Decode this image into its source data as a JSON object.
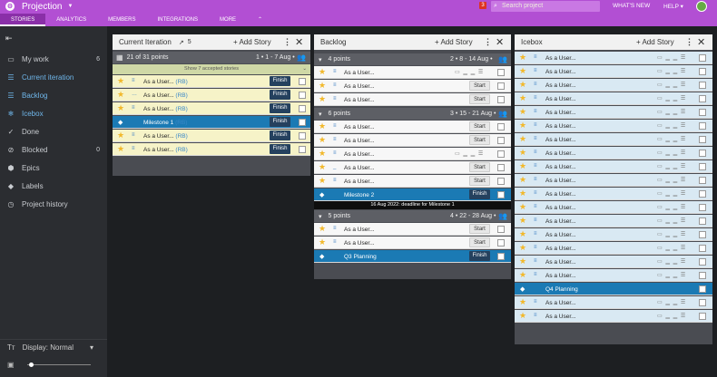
{
  "topbar": {
    "project_name": "Projection",
    "notification_count": "3",
    "search_placeholder": "Search project",
    "whats_new": "WHAT'S NEW",
    "help": "HELP",
    "tabs": [
      "STORIES",
      "ANALYTICS",
      "MEMBERS",
      "INTEGRATIONS",
      "MORE"
    ]
  },
  "sidebar": {
    "items": [
      {
        "label": "My work",
        "count": "6",
        "icon": "person-icon"
      },
      {
        "label": "Current iteration",
        "count": "",
        "icon": "list-icon"
      },
      {
        "label": "Backlog",
        "count": "",
        "icon": "list-icon"
      },
      {
        "label": "Icebox",
        "count": "",
        "icon": "snowflake-icon"
      },
      {
        "label": "Done",
        "count": "",
        "icon": "check-icon"
      },
      {
        "label": "Blocked",
        "count": "0",
        "icon": "blocked-icon"
      },
      {
        "label": "Epics",
        "count": "",
        "icon": "epic-icon"
      },
      {
        "label": "Labels",
        "count": "",
        "icon": "tag-icon"
      },
      {
        "label": "Project history",
        "count": "",
        "icon": "history-icon"
      }
    ],
    "display": "Display: Normal"
  },
  "panels": {
    "current": {
      "title": "Current Iteration",
      "count": "5",
      "add": "Add Story",
      "header": "21 of 31 points",
      "header_meta": "1 • 1 - 7 Aug •",
      "accepted": "Show 7 accepted stories"
    },
    "backlog": {
      "title": "Backlog",
      "add": "Add Story",
      "groups": [
        {
          "points": "4 points",
          "meta": "2 • 8 - 14 Aug •"
        },
        {
          "points": "6 points",
          "meta": "3 • 15 - 21 Aug •"
        },
        {
          "points": "5 points",
          "meta": "4 • 22 - 28 Aug •"
        }
      ],
      "deadline": "16 Aug 2022: deadline for Milestone 1"
    },
    "icebox": {
      "title": "Icebox",
      "add": "Add Story"
    }
  },
  "stories": {
    "as_user": "As a User...",
    "owner": "(RB)",
    "milestone1": "Milestone 1",
    "milestone2": "Milestone 2",
    "q3": "Q3 Planning",
    "q4": "Q4 Planning",
    "finish": "Finish",
    "start": "Start"
  }
}
